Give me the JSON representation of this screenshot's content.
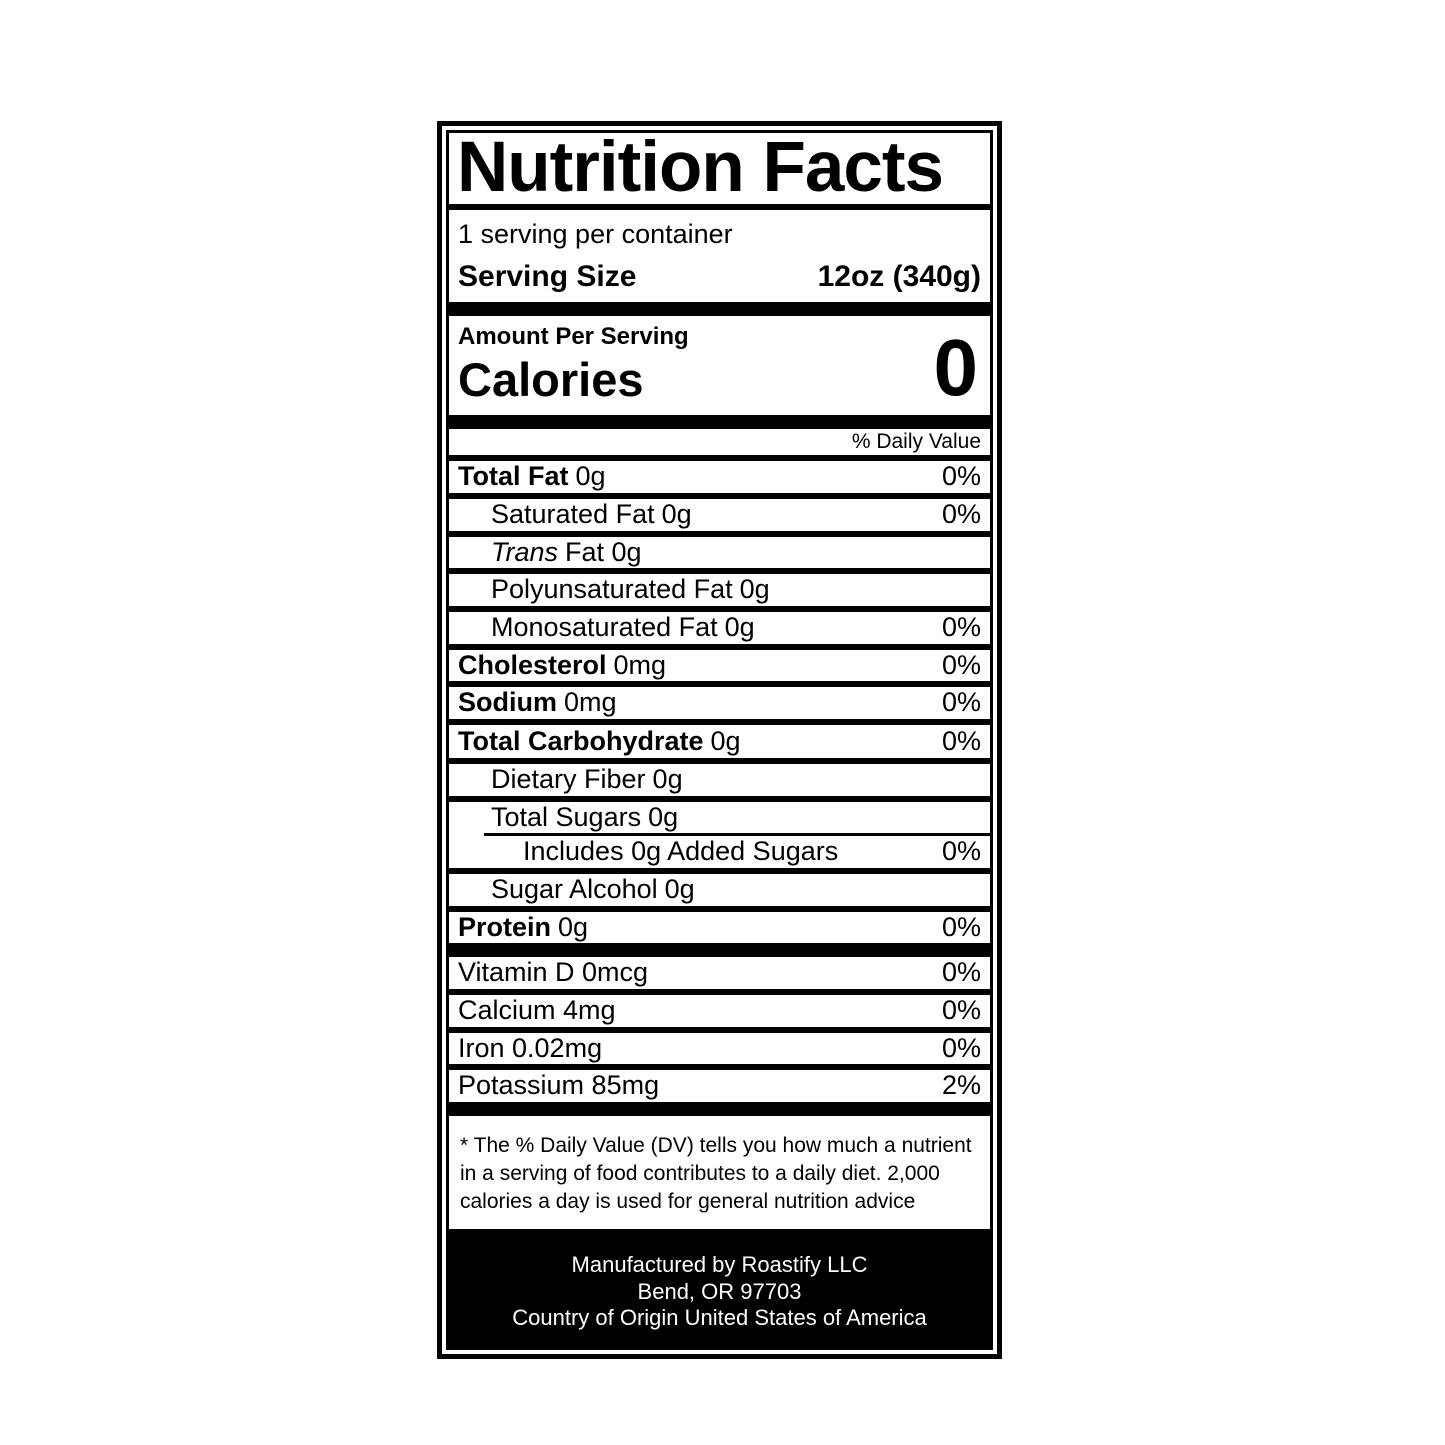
{
  "colors": {
    "ink": "#000000",
    "paper": "#ffffff"
  },
  "label": {
    "title": "Nutrition Facts",
    "servings_per_container": "1 serving per container",
    "serving_size_label": "Serving Size",
    "serving_size_value": "12oz (340g)",
    "amount_per_serving": "Amount Per Serving",
    "calories_label": "Calories",
    "calories_value": "0",
    "daily_value_header": "% Daily Value",
    "rows": [
      {
        "name": "Total Fat",
        "amount": "0g",
        "dv": "0%"
      },
      {
        "name": "Saturated Fat",
        "amount": "0g",
        "dv": "0%"
      },
      {
        "name": "Trans",
        "amount": "Fat 0g",
        "dv": ""
      },
      {
        "name": "Polyunsaturated Fat",
        "amount": "0g",
        "dv": ""
      },
      {
        "name": "Monosaturated Fat",
        "amount": "0g",
        "dv": "0%"
      },
      {
        "name": "Cholesterol",
        "amount": "0mg",
        "dv": "0%"
      },
      {
        "name": "Sodium",
        "amount": "0mg",
        "dv": "0%"
      },
      {
        "name": "Total Carbohydrate",
        "amount": "0g",
        "dv": "0%"
      },
      {
        "name": "Dietary Fiber",
        "amount": "0g",
        "dv": ""
      },
      {
        "name": "Total Sugars",
        "amount": "0g",
        "dv": ""
      },
      {
        "name": "Includes 0g Added Sugars",
        "amount": "",
        "dv": "0%"
      },
      {
        "name": "Sugar Alcohol",
        "amount": "0g",
        "dv": ""
      },
      {
        "name": "Protein",
        "amount": "0g",
        "dv": "0%"
      }
    ],
    "vitamins": [
      {
        "name": "Vitamin D 0mcg",
        "dv": "0%"
      },
      {
        "name": "Calcium 4mg",
        "dv": "0%"
      },
      {
        "name": "Iron 0.02mg",
        "dv": "0%"
      },
      {
        "name": "Potassium 85mg",
        "dv": "2%"
      }
    ],
    "footnote": "* The % Daily Value (DV) tells you how much a nutrient in a serving of food contributes to a daily diet. 2,000 calories a day is used for general nutrition advice",
    "footer_lines": [
      "Manufactured by Roastify LLC",
      "Bend, OR 97703",
      "Country of Origin United States of America"
    ]
  }
}
